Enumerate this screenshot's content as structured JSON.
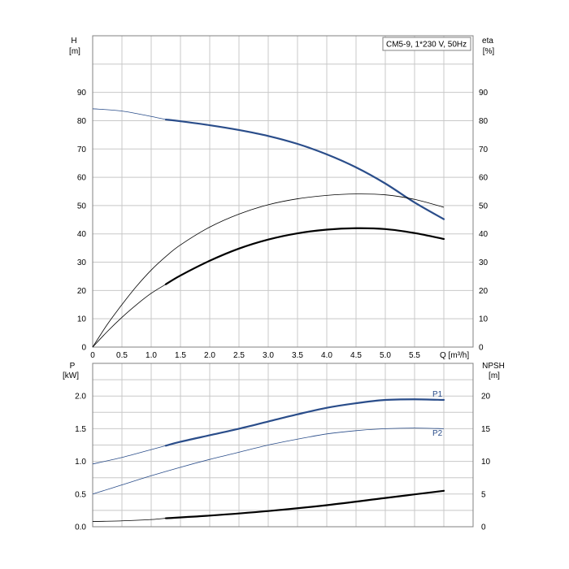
{
  "chart_data": [
    {
      "type": "line",
      "legend_box": "CM5-9, 1*230 V, 50Hz",
      "legend_position": "top-right",
      "grid": true,
      "x": {
        "label": "Q [m³/h]",
        "ticks": [
          "0",
          "0.5",
          "1.0",
          "1.5",
          "2.0",
          "2.5",
          "3.0",
          "3.5",
          "4.0",
          "4.5",
          "5.0",
          "5.5"
        ],
        "range": [
          0,
          6.5
        ]
      },
      "y_left": {
        "label_line1": "H",
        "label_line2": "[m]",
        "ticks": [
          "0",
          "10",
          "20",
          "30",
          "40",
          "50",
          "60",
          "70",
          "80",
          "90"
        ],
        "range": [
          0,
          110
        ]
      },
      "y_right": {
        "label_line1": "eta",
        "label_line2": "[%]",
        "ticks": [
          "0",
          "10",
          "20",
          "30",
          "40",
          "50",
          "60",
          "70",
          "80",
          "90"
        ],
        "range": [
          0,
          110
        ]
      },
      "series": [
        {
          "axis": "left",
          "color": "#2a4d8a",
          "points_thin": [
            [
              0,
              84.2
            ],
            [
              0.5,
              83.4
            ],
            [
              1.0,
              81.5
            ],
            [
              1.25,
              80.4
            ]
          ],
          "points_bold": [
            [
              1.25,
              80.4
            ],
            [
              1.5,
              79.8
            ],
            [
              2.0,
              78.4
            ],
            [
              2.5,
              76.7
            ],
            [
              3.0,
              74.6
            ],
            [
              3.5,
              71.8
            ],
            [
              4.0,
              68.1
            ],
            [
              4.5,
              63.5
            ],
            [
              5.0,
              57.8
            ],
            [
              5.5,
              51.1
            ],
            [
              6.0,
              45.2
            ]
          ]
        },
        {
          "axis": "right",
          "color": "#000000",
          "points_thin": [
            [
              0,
              0
            ],
            [
              0.25,
              8.0
            ],
            [
              0.5,
              15.0
            ],
            [
              0.75,
              21.5
            ],
            [
              1.0,
              27.2
            ],
            [
              1.25,
              32.0
            ],
            [
              1.5,
              36.1
            ],
            [
              2.0,
              42.4
            ],
            [
              2.5,
              47.0
            ],
            [
              3.0,
              50.3
            ],
            [
              3.5,
              52.4
            ],
            [
              4.0,
              53.6
            ],
            [
              4.5,
              54.1
            ],
            [
              5.0,
              53.8
            ],
            [
              5.5,
              52.2
            ],
            [
              6.0,
              49.4
            ]
          ]
        },
        {
          "axis": "right",
          "color": "#000000",
          "points_thin": [
            [
              0,
              0
            ],
            [
              0.25,
              5.5
            ],
            [
              0.5,
              10.5
            ],
            [
              0.75,
              15.0
            ],
            [
              1.0,
              19.0
            ],
            [
              1.25,
              22.2
            ]
          ],
          "points_bold": [
            [
              1.25,
              22.2
            ],
            [
              1.5,
              25.3
            ],
            [
              2.0,
              30.5
            ],
            [
              2.5,
              34.8
            ],
            [
              3.0,
              38.0
            ],
            [
              3.5,
              40.2
            ],
            [
              4.0,
              41.5
            ],
            [
              4.5,
              42.0
            ],
            [
              5.0,
              41.7
            ],
            [
              5.5,
              40.3
            ],
            [
              6.0,
              38.2
            ]
          ]
        }
      ]
    },
    {
      "type": "line",
      "grid": true,
      "x": {
        "range": [
          0,
          6.5
        ]
      },
      "y_left": {
        "label_line1": "P",
        "label_line2": "[kW]",
        "ticks": [
          "0.0",
          "0.5",
          "1.0",
          "1.5",
          "2.0"
        ],
        "range": [
          0,
          2.5
        ]
      },
      "y_right": {
        "label_line1": "NPSH",
        "label_line2": "[m]",
        "ticks": [
          "0",
          "5",
          "10",
          "15",
          "20"
        ],
        "range": [
          0,
          25
        ]
      },
      "series": [
        {
          "name": "P1",
          "axis": "left",
          "color": "#2a4d8a",
          "points_thin": [
            [
              0,
              0.96
            ],
            [
              0.5,
              1.06
            ],
            [
              1.0,
              1.18
            ],
            [
              1.25,
              1.24
            ]
          ],
          "points_bold": [
            [
              1.25,
              1.24
            ],
            [
              1.5,
              1.3
            ],
            [
              2.0,
              1.4
            ],
            [
              2.5,
              1.5
            ],
            [
              3.0,
              1.61
            ],
            [
              3.5,
              1.72
            ],
            [
              4.0,
              1.82
            ],
            [
              4.5,
              1.89
            ],
            [
              5.0,
              1.94
            ],
            [
              5.5,
              1.95
            ],
            [
              6.0,
              1.94
            ]
          ]
        },
        {
          "name": "P2",
          "axis": "left",
          "color": "#2a4d8a",
          "points_thin": [
            [
              0,
              0.5
            ],
            [
              0.5,
              0.64
            ],
            [
              1.0,
              0.78
            ],
            [
              1.5,
              0.91
            ],
            [
              2.0,
              1.03
            ],
            [
              2.5,
              1.14
            ],
            [
              3.0,
              1.25
            ],
            [
              3.5,
              1.34
            ],
            [
              4.0,
              1.42
            ],
            [
              4.5,
              1.47
            ],
            [
              5.0,
              1.5
            ],
            [
              5.5,
              1.51
            ],
            [
              6.0,
              1.5
            ]
          ]
        },
        {
          "axis": "right",
          "color": "#000000",
          "points_thin": [
            [
              0,
              0.8
            ],
            [
              0.5,
              0.9
            ],
            [
              1.0,
              1.1
            ],
            [
              1.25,
              1.3
            ]
          ],
          "points_bold": [
            [
              1.25,
              1.3
            ],
            [
              2.0,
              1.7
            ],
            [
              3.0,
              2.4
            ],
            [
              4.0,
              3.3
            ],
            [
              5.0,
              4.4
            ],
            [
              6.0,
              5.5
            ]
          ]
        }
      ]
    }
  ]
}
